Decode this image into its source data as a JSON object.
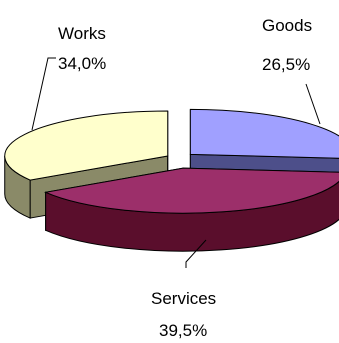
{
  "chart_data": {
    "type": "pie",
    "style": "3d-exploded",
    "categories": [
      "Goods",
      "Services",
      "Works"
    ],
    "values": [
      26.5,
      39.5,
      34.0
    ],
    "percent_labels": [
      "26,5%",
      "39,5%",
      "34,0%"
    ],
    "colors": {
      "Goods": "#a0a0ff",
      "Services": "#9c2f6a",
      "Works": "#ffffcc"
    },
    "side_colors": {
      "Goods": "#4d4f8a",
      "Services": "#5a0e2c",
      "Works": "#8a8a68"
    },
    "legend": "none",
    "title": ""
  }
}
